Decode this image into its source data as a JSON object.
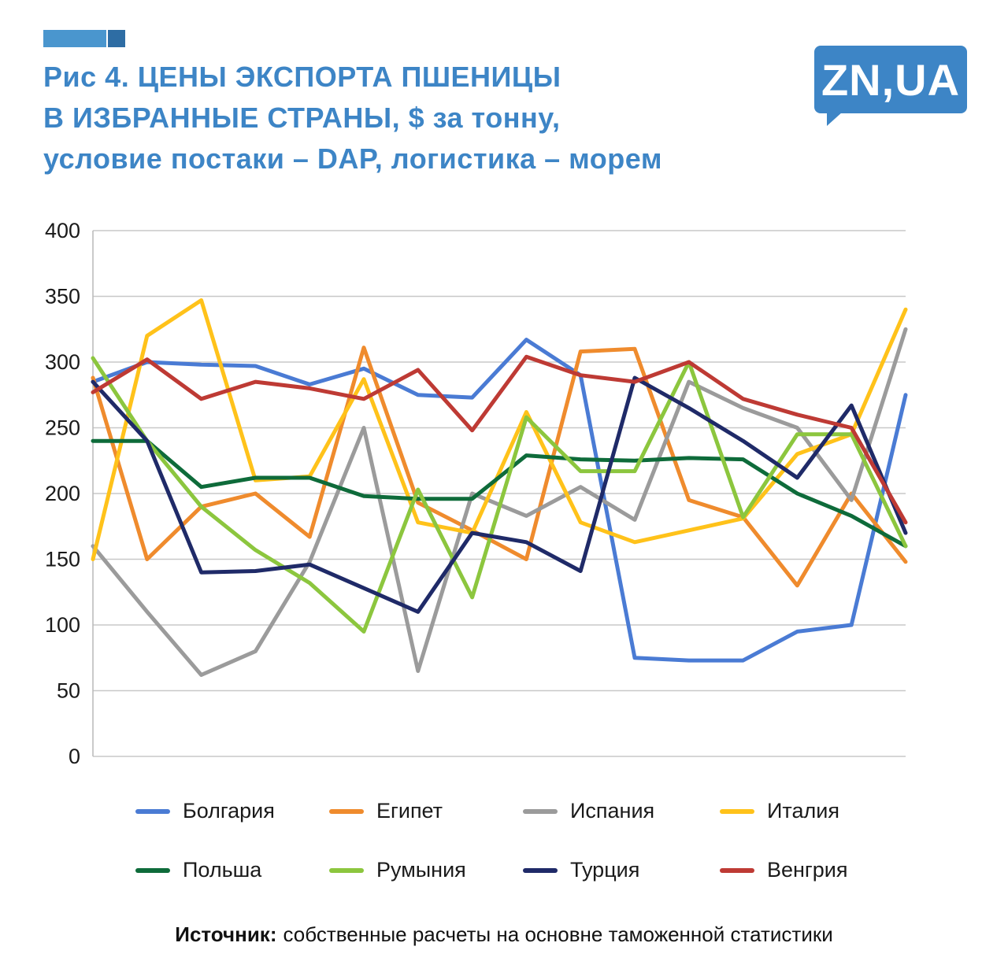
{
  "header": {
    "title_lines": [
      "Рис 4. ЦЕНЫ ЭКСПОРТА ПШЕНИЦЫ",
      "В ИЗБРАННЫЕ СТРАНЫ, $ за тонну,",
      "условие постаки – DAP, логистика – морем"
    ],
    "logo_text": "ZN,UA",
    "accent_color": "#3d85c6"
  },
  "chart_data": {
    "type": "line",
    "title": "Рис 4. ЦЕНЫ ЭКСПОРТА ПШЕНИЦЫ В ИЗБРАННЫЕ СТРАНЫ, $ за тонну, условие постаки – DAP, логистика – морем",
    "xlabel": "",
    "ylabel": "",
    "ylim": [
      0,
      400
    ],
    "yticks": [
      0,
      50,
      100,
      150,
      200,
      250,
      300,
      350,
      400
    ],
    "grid": true,
    "x_tick_labels_visible": false,
    "legend_position": "bottom",
    "x": [
      1,
      2,
      3,
      4,
      5,
      6,
      7,
      8,
      9,
      10,
      11,
      12,
      13,
      14,
      15,
      16
    ],
    "series": [
      {
        "name": "Болгария",
        "color": "#4a7bd4",
        "values": [
          285,
          300,
          298,
          297,
          283,
          295,
          275,
          273,
          317,
          290,
          75,
          73,
          73,
          95,
          100,
          275
        ]
      },
      {
        "name": "Египет",
        "color": "#ef8b2d",
        "values": [
          288,
          150,
          190,
          200,
          167,
          311,
          193,
          172,
          150,
          308,
          310,
          195,
          182,
          130,
          200,
          148
        ]
      },
      {
        "name": "Испания",
        "color": "#9b9b9b",
        "values": [
          160,
          110,
          62,
          80,
          148,
          250,
          65,
          200,
          183,
          205,
          180,
          285,
          265,
          250,
          195,
          325
        ]
      },
      {
        "name": "Италия",
        "color": "#ffc21a",
        "values": [
          150,
          320,
          347,
          210,
          213,
          287,
          178,
          170,
          262,
          178,
          163,
          172,
          181,
          230,
          245,
          340
        ]
      },
      {
        "name": "Польша",
        "color": "#0e6b3a",
        "values": [
          240,
          240,
          205,
          212,
          212,
          198,
          196,
          196,
          229,
          226,
          225,
          227,
          226,
          200,
          183,
          160
        ]
      },
      {
        "name": "Румыния",
        "color": "#8cc63e",
        "values": [
          303,
          240,
          190,
          157,
          132,
          95,
          203,
          121,
          258,
          217,
          217,
          300,
          182,
          245,
          245,
          160
        ]
      },
      {
        "name": "Турция",
        "color": "#1f2a68",
        "values": [
          285,
          240,
          140,
          141,
          146,
          128,
          110,
          170,
          163,
          141,
          288,
          265,
          240,
          212,
          267,
          170
        ]
      },
      {
        "name": "Венгрия",
        "color": "#be3a34",
        "values": [
          277,
          302,
          272,
          285,
          280,
          272,
          294,
          248,
          304,
          290,
          285,
          300,
          272,
          260,
          250,
          178
        ]
      }
    ]
  },
  "footer": {
    "source_label": "Источник:",
    "source_text": "собственные расчеты на основне таможенной статистики"
  }
}
